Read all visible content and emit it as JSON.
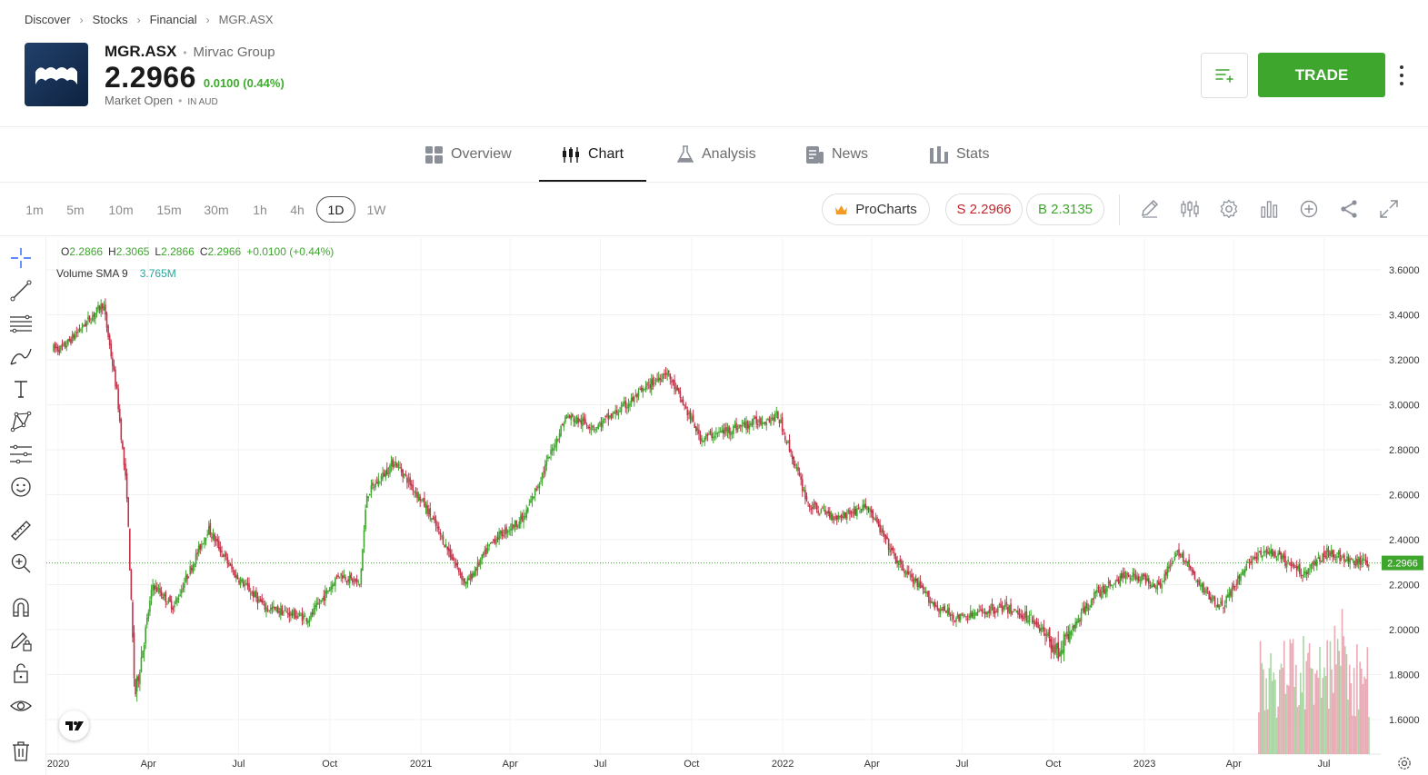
{
  "breadcrumb": {
    "items": [
      "Discover",
      "Stocks",
      "Financial"
    ],
    "current": "MGR.ASX"
  },
  "instrument": {
    "ticker": "MGR.ASX",
    "company": "Mirvac Group",
    "price": "2.2966",
    "change": "0.0100 (0.44%)",
    "market_status": "Market Open",
    "currency": "IN AUD",
    "logo_icon": "mirvac-logo-icon"
  },
  "actions": {
    "trade_label": "TRADE",
    "watchlist_icon": "add-to-watchlist-icon",
    "more_icon": "more-vertical-icon"
  },
  "tabs": [
    {
      "label": "Overview",
      "icon": "grid-icon"
    },
    {
      "label": "Chart",
      "icon": "candles-icon",
      "active": true
    },
    {
      "label": "Analysis",
      "icon": "flask-icon"
    },
    {
      "label": "News",
      "icon": "newspaper-icon"
    },
    {
      "label": "Stats",
      "icon": "bar-chart-icon"
    }
  ],
  "toolbar": {
    "intervals": [
      "1m",
      "5m",
      "10m",
      "15m",
      "30m",
      "1h",
      "4h",
      "1D",
      "1W"
    ],
    "active_interval": "1D",
    "procharts_label": "ProCharts",
    "sell_label": "S 2.2966",
    "buy_label": "B 2.3135",
    "tools": [
      "pencil-icon",
      "indicators-icon",
      "settings-icon",
      "bars-icon",
      "add-circle-icon",
      "share-icon",
      "fullscreen-icon"
    ]
  },
  "drawing_tools": [
    "crosshair-icon",
    "trend-line-icon",
    "horizontal-lines-icon",
    "brush-icon",
    "text-icon",
    "pattern-icon",
    "forecast-icon",
    "emoji-icon",
    "ruler-icon",
    "zoom-in-icon",
    "magnet-icon",
    "lock-pencil-icon",
    "lock-icon",
    "eye-icon",
    "trash-icon"
  ],
  "legend": {
    "o_label": "O",
    "o_value": "2.2866",
    "h_label": "H",
    "h_value": "2.3065",
    "l_label": "L",
    "l_value": "2.2866",
    "c_label": "C",
    "c_value": "2.2966",
    "change": "+0.0100 (+0.44%)",
    "volume_label": "Volume SMA 9",
    "volume_value": "3.765M"
  },
  "colors": {
    "up": "#3ea62d",
    "down": "#c2334a",
    "trade": "#3ea62d",
    "price_line": "#3ea62d"
  },
  "chart_data": {
    "type": "candlestick",
    "x_labels": [
      "2020",
      "Apr",
      "Jul",
      "Oct",
      "2021",
      "Apr",
      "Jul",
      "Oct",
      "2022",
      "Apr",
      "Jul",
      "Oct",
      "2023",
      "Apr",
      "Jul"
    ],
    "y_ticks": [
      "3.6000",
      "3.4000",
      "3.2000",
      "3.0000",
      "2.8000",
      "2.6000",
      "2.4000",
      "2.2000",
      "2.0000",
      "1.8000",
      "1.6000"
    ],
    "ylim": [
      1.45,
      3.7
    ],
    "last_price": "2.2966",
    "price_points": [
      [
        "2020-01",
        3.25
      ],
      [
        "2020-02",
        3.4
      ],
      [
        "2020-02-20",
        3.45
      ],
      [
        "2020-03-05",
        3.05
      ],
      [
        "2020-03-15",
        2.6
      ],
      [
        "2020-03-23",
        1.7
      ],
      [
        "2020-04-10",
        2.2
      ],
      [
        "2020-05-01",
        2.1
      ],
      [
        "2020-06-05",
        2.45
      ],
      [
        "2020-07-01",
        2.25
      ],
      [
        "2020-08-01",
        2.1
      ],
      [
        "2020-09-15",
        2.05
      ],
      [
        "2020-10-15",
        2.25
      ],
      [
        "2020-11-05",
        2.2
      ],
      [
        "2020-11-12",
        2.6
      ],
      [
        "2020-12-10",
        2.75
      ],
      [
        "2021-01-10",
        2.55
      ],
      [
        "2021-02-20",
        2.2
      ],
      [
        "2021-03-20",
        2.4
      ],
      [
        "2021-04-20",
        2.5
      ],
      [
        "2021-06-01",
        2.95
      ],
      [
        "2021-07-01",
        2.9
      ],
      [
        "2021-08-01",
        3.0
      ],
      [
        "2021-09-10",
        3.15
      ],
      [
        "2021-10-15",
        2.85
      ],
      [
        "2021-11-20",
        2.9
      ],
      [
        "2022-01-01",
        2.95
      ],
      [
        "2022-02-01",
        2.55
      ],
      [
        "2022-03-01",
        2.5
      ],
      [
        "2022-04-01",
        2.55
      ],
      [
        "2022-05-01",
        2.3
      ],
      [
        "2022-06-10",
        2.1
      ],
      [
        "2022-07-01",
        2.05
      ],
      [
        "2022-08-15",
        2.1
      ],
      [
        "2022-09-15",
        2.05
      ],
      [
        "2022-10-10",
        1.9
      ],
      [
        "2022-11-15",
        2.15
      ],
      [
        "2022-12-20",
        2.25
      ],
      [
        "2023-01-20",
        2.2
      ],
      [
        "2023-02-10",
        2.35
      ],
      [
        "2023-03-01",
        2.2
      ],
      [
        "2023-03-25",
        2.1
      ],
      [
        "2023-04-20",
        2.3
      ],
      [
        "2023-05-10",
        2.35
      ],
      [
        "2023-06-15",
        2.25
      ],
      [
        "2023-07-10",
        2.35
      ],
      [
        "2023-08-01",
        2.3
      ]
    ],
    "volume_bars_note": "recent months only",
    "grid": true
  }
}
